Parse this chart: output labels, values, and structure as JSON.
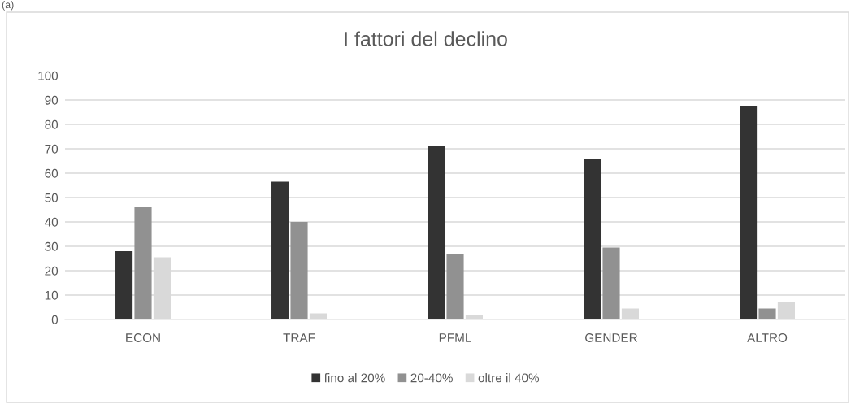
{
  "chart_data": {
    "type": "bar",
    "title": "I fattori del declino",
    "annotations": [
      "(a)"
    ],
    "categories": [
      "ECON",
      "TRAF",
      "PFML",
      "GENDER",
      "ALTRO"
    ],
    "series": [
      {
        "name": "fino al 20%",
        "color": "#333333",
        "values": [
          28,
          56.5,
          71,
          66,
          87.5
        ]
      },
      {
        "name": "20-40%",
        "color": "#919191",
        "values": [
          46,
          40,
          27,
          29.5,
          4.5
        ]
      },
      {
        "name": "oltre il 40%",
        "color": "#d9d9d9",
        "values": [
          25.5,
          2.5,
          2,
          4.5,
          7
        ]
      }
    ],
    "ylim": [
      0,
      100
    ],
    "yticks": [
      0,
      10,
      20,
      30,
      40,
      50,
      60,
      70,
      80,
      90,
      100
    ],
    "grid": "y",
    "legend": "bottom"
  }
}
